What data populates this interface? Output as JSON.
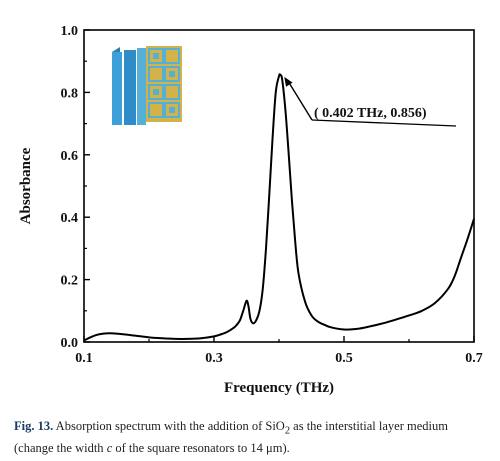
{
  "chart_data": {
    "type": "line",
    "title": "",
    "xlabel": "Frequency (THz)",
    "ylabel": "Absorbance",
    "xlim": [
      0.1,
      0.7
    ],
    "ylim": [
      0.0,
      1.0
    ],
    "xticks": [
      0.1,
      0.3,
      0.5,
      0.7
    ],
    "yticks": [
      0.0,
      0.2,
      0.4,
      0.6,
      0.8,
      1.0
    ],
    "xtick_labels": [
      "0.1",
      "0.3",
      "0.5",
      "0.7"
    ],
    "ytick_labels": [
      "0.0",
      "0.2",
      "0.4",
      "0.6",
      "0.8",
      "1.0"
    ],
    "grid": false,
    "line_color": "#000000",
    "series": [
      {
        "x": [
          0.1,
          0.11,
          0.12,
          0.13,
          0.14,
          0.15,
          0.16,
          0.18,
          0.2,
          0.22,
          0.24,
          0.26,
          0.28,
          0.3,
          0.31,
          0.32,
          0.33,
          0.335,
          0.34,
          0.345,
          0.35,
          0.353,
          0.356,
          0.36,
          0.365,
          0.37,
          0.375,
          0.38,
          0.385,
          0.39,
          0.395,
          0.4,
          0.402,
          0.405,
          0.41,
          0.415,
          0.42,
          0.425,
          0.43,
          0.44,
          0.45,
          0.46,
          0.47,
          0.48,
          0.5,
          0.52,
          0.54,
          0.56,
          0.58,
          0.6,
          0.62,
          0.64,
          0.66,
          0.67,
          0.68,
          0.69,
          0.7
        ],
        "y": [
          0.005,
          0.015,
          0.023,
          0.027,
          0.028,
          0.027,
          0.025,
          0.02,
          0.015,
          0.012,
          0.01,
          0.01,
          0.012,
          0.018,
          0.024,
          0.032,
          0.045,
          0.055,
          0.07,
          0.1,
          0.132,
          0.115,
          0.075,
          0.06,
          0.07,
          0.1,
          0.17,
          0.3,
          0.47,
          0.65,
          0.8,
          0.852,
          0.856,
          0.84,
          0.74,
          0.6,
          0.45,
          0.32,
          0.22,
          0.13,
          0.085,
          0.065,
          0.055,
          0.047,
          0.04,
          0.042,
          0.05,
          0.06,
          0.072,
          0.085,
          0.1,
          0.125,
          0.17,
          0.21,
          0.27,
          0.33,
          0.395
        ]
      }
    ],
    "annotation": {
      "text": "( 0.402 THz, 0.856)",
      "x": 0.402,
      "y": 0.856
    }
  },
  "caption": {
    "label": "Fig. 13.",
    "text_before_sub": "Absorption spectrum with the addition of SiO",
    "sub": "2",
    "text_after_sub": " as the interstitial layer medium (change the width ",
    "italic": "c",
    "text_end": " of the square resonators to 14 μm)."
  },
  "inset": {
    "icon": "metamaterial-structure-icon",
    "colors": {
      "substrate": "#3ea0d8",
      "pattern": "#d4b24a",
      "pattern_bg": "#55b0d8"
    }
  }
}
